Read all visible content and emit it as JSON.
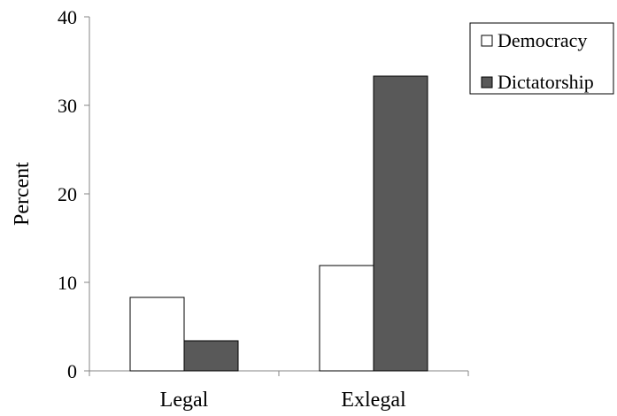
{
  "chart_data": {
    "type": "bar",
    "categories": [
      "Legal",
      "Exlegal"
    ],
    "series": [
      {
        "name": "Democracy",
        "values": [
          8.3,
          11.9
        ]
      },
      {
        "name": "Dictatorship",
        "values": [
          3.4,
          33.3
        ]
      }
    ],
    "title": "",
    "xlabel": "",
    "ylabel": "Percent",
    "ylim": [
      0,
      40
    ],
    "yticks": [
      "0",
      "10",
      "20",
      "30",
      "40"
    ],
    "grid": false,
    "legend_position": "top-right"
  },
  "colors": {
    "Democracy": "#ffffff",
    "Dictatorship": "#595959",
    "outline": "#000000",
    "axis": "#868686"
  }
}
